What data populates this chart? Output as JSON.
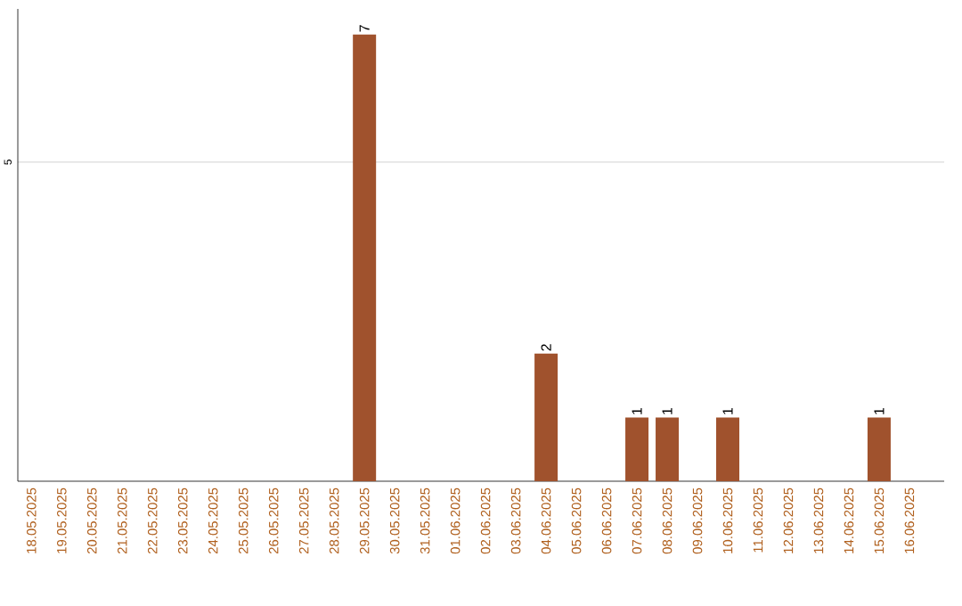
{
  "chart_data": {
    "type": "bar",
    "categories": [
      "18.05.2025",
      "19.05.2025",
      "20.05.2025",
      "21.05.2025",
      "22.05.2025",
      "23.05.2025",
      "24.05.2025",
      "25.05.2025",
      "26.05.2025",
      "27.05.2025",
      "28.05.2025",
      "29.05.2025",
      "30.05.2025",
      "31.05.2025",
      "01.06.2025",
      "02.06.2025",
      "03.06.2025",
      "04.06.2025",
      "05.06.2025",
      "06.06.2025",
      "07.06.2025",
      "08.06.2025",
      "09.06.2025",
      "10.06.2025",
      "11.06.2025",
      "12.06.2025",
      "13.06.2025",
      "14.06.2025",
      "15.06.2025",
      "16.06.2025"
    ],
    "values": [
      0,
      0,
      0,
      0,
      0,
      0,
      0,
      0,
      0,
      0,
      0,
      7,
      0,
      0,
      0,
      0,
      0,
      2,
      0,
      0,
      1,
      1,
      0,
      1,
      0,
      0,
      0,
      0,
      1,
      0
    ],
    "value_labels": [
      null,
      null,
      null,
      null,
      null,
      null,
      null,
      null,
      null,
      null,
      null,
      "7",
      null,
      null,
      null,
      null,
      null,
      "2",
      null,
      null,
      "1",
      "1",
      null,
      "1",
      null,
      null,
      null,
      null,
      "1",
      null
    ],
    "color": "#a0522d",
    "ylim": [
      0,
      7.4
    ],
    "yticks": [
      5
    ],
    "grid": "y"
  }
}
